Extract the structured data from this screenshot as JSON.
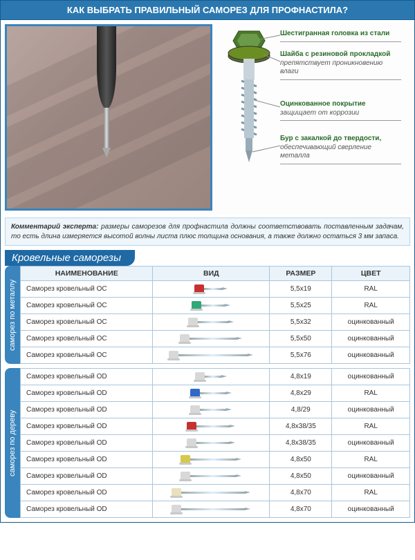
{
  "header": "КАК ВЫБРАТЬ ПРАВИЛЬНЫЙ САМОРЕЗ ДЛЯ ПРОФНАСТИЛА?",
  "callouts": [
    {
      "bold": "Шестигранная головка из стали",
      "italic": ""
    },
    {
      "bold": "Шайба с резиновой прокладкой",
      "italic": " препятствует проникновению влаги"
    },
    {
      "bold": "Оцинкованное покрытие",
      "italic": "защищает от коррозии"
    },
    {
      "bold": "Бур с закалкой до твердости,",
      "italic": "обеспечивающий сверление металла"
    }
  ],
  "diagram_colors": {
    "head": "#4a7a2a",
    "washer": "#556b2f",
    "shaft": "#b8c8d0",
    "thread": "#8fa8b8"
  },
  "comment": {
    "label": "Комментарий эксперта:",
    "text": " размеры саморезов для профнастила должны соответствовать поставленным задачам, то есть длина измеряется высотой волны листа плюс толщина основания, а также должно остаться 3 мм запаса."
  },
  "table_caption": "Кровельные саморезы",
  "columns": [
    "НАИМЕНОВАНИЕ",
    "ВИД",
    "РАЗМЕР",
    "ЦВЕТ"
  ],
  "groups": [
    {
      "side_label": "саморез  по  металлу",
      "side_class": "metal",
      "rows": [
        {
          "name": "Саморез кровельный ОС",
          "head_color": "#c73030",
          "shaft_len": 26,
          "size": "5,5x19",
          "color": "RAL"
        },
        {
          "name": "Саморез кровельный ОС",
          "head_color": "#2fa87a",
          "shaft_len": 34,
          "size": "5,5x25",
          "color": "RAL"
        },
        {
          "name": "Саморез кровельный ОС",
          "head_color": "#d8d8d8",
          "shaft_len": 44,
          "size": "5,5x32",
          "color": "оцинкованный"
        },
        {
          "name": "Саморез кровельный ОС",
          "head_color": "#d8d8d8",
          "shaft_len": 68,
          "size": "5,5x50",
          "color": "оцинкованный"
        },
        {
          "name": "Саморез кровельный ОС",
          "head_color": "#d8d8d8",
          "shaft_len": 100,
          "size": "5,5x76",
          "color": "оцинкованный"
        }
      ]
    },
    {
      "side_label": "саморез  по  дереву",
      "side_class": "wood",
      "rows": [
        {
          "name": "Саморез кровельный OD",
          "head_color": "#d8d8d8",
          "shaft_len": 24,
          "size": "4,8x19",
          "color": "оцинкованный"
        },
        {
          "name": "Саморез кровельный OD",
          "head_color": "#2f68c7",
          "shaft_len": 38,
          "size": "4,8x29",
          "color": "RAL"
        },
        {
          "name": "Саморез кровельный OD",
          "head_color": "#d8d8d8",
          "shaft_len": 38,
          "size": "4,8/29",
          "color": "оцинкованный"
        },
        {
          "name": "Саморез кровельный OD",
          "head_color": "#c73030",
          "shaft_len": 48,
          "size": "4,8x38/35",
          "color": "RAL"
        },
        {
          "name": "Саморез кровельный OD",
          "head_color": "#d8d8d8",
          "shaft_len": 48,
          "size": "4,8x38/35",
          "color": "оцинкованный"
        },
        {
          "name": "Саморез кровельный OD",
          "head_color": "#d6c84a",
          "shaft_len": 66,
          "size": "4,8x50",
          "color": "RAL"
        },
        {
          "name": "Саморез кровельный OD",
          "head_color": "#d8d8d8",
          "shaft_len": 66,
          "size": "4,8x50",
          "color": "оцинкованный"
        },
        {
          "name": "Саморез кровельный OD",
          "head_color": "#e8e0c0",
          "shaft_len": 92,
          "size": "4,8x70",
          "color": "RAL"
        },
        {
          "name": "Саморез кровельный OD",
          "head_color": "#d8d8d8",
          "shaft_len": 92,
          "size": "4,8x70",
          "color": "оцинкованный"
        }
      ]
    }
  ]
}
